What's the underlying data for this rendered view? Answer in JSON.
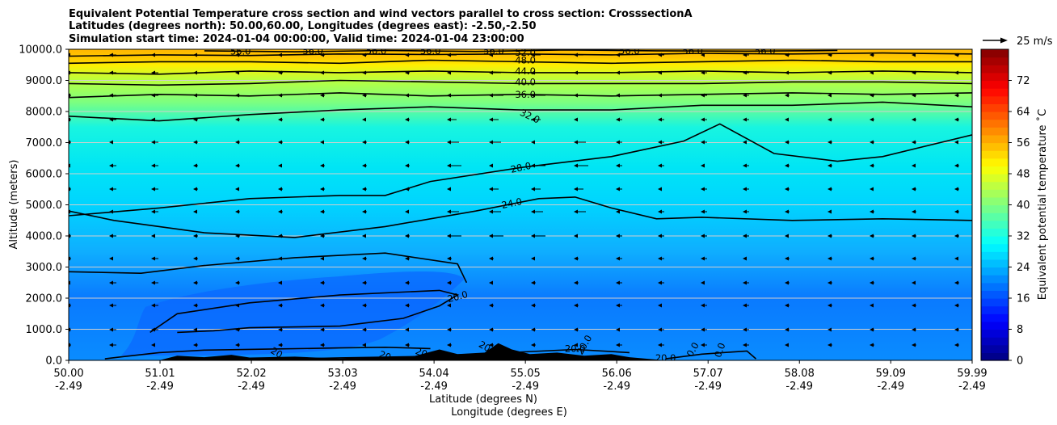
{
  "chart_data": {
    "type": "heatmap",
    "title": [
      "Equivalent Potential Temperature cross section and wind vectors parallel to cross section: CrosssectionA",
      "Latitudes (degrees north): 50.00,60.00, Longitudes (degrees east): -2.50,-2.50",
      "Simulation start time: 2024-01-04 00:00:00, Valid time: 2024-01-04 23:00:00"
    ],
    "ylabel": "Altitude (meters)",
    "xlabel": "Latitude (degrees N)",
    "xlabel2": "Longitude (degrees E)",
    "ylim": [
      0,
      10000
    ],
    "yticks": [
      "0.0",
      "1000.0",
      "2000.0",
      "3000.0",
      "4000.0",
      "5000.0",
      "6000.0",
      "7000.0",
      "8000.0",
      "9000.0",
      "10000.0"
    ],
    "xlim": [
      50.0,
      59.99
    ],
    "xticks": [
      {
        "lat": "50.00",
        "lon": "-2.49"
      },
      {
        "lat": "51.01",
        "lon": "-2.49"
      },
      {
        "lat": "52.02",
        "lon": "-2.49"
      },
      {
        "lat": "53.03",
        "lon": "-2.49"
      },
      {
        "lat": "54.04",
        "lon": "-2.49"
      },
      {
        "lat": "55.05",
        "lon": "-2.49"
      },
      {
        "lat": "56.06",
        "lon": "-2.49"
      },
      {
        "lat": "57.07",
        "lon": "-2.49"
      },
      {
        "lat": "58.08",
        "lon": "-2.49"
      },
      {
        "lat": "59.09",
        "lon": "-2.49"
      },
      {
        "lat": "59.99",
        "lon": "-2.49"
      }
    ],
    "grid": true,
    "colorbar": {
      "label": "Equivalent potential temperature ˚C",
      "range": [
        0,
        80
      ],
      "ticks": [
        "0",
        "8",
        "16",
        "24",
        "32",
        "40",
        "48",
        "56",
        "64",
        "72"
      ]
    },
    "quiver_key": "25 m/s",
    "contours": [
      {
        "label": "20.0",
        "points": [
          [
            50.4,
            50
          ],
          [
            50.6,
            120
          ],
          [
            51.0,
            250
          ],
          [
            51.5,
            330
          ],
          [
            52.2,
            360
          ],
          [
            53.0,
            400
          ],
          [
            53.5,
            420
          ],
          [
            54.0,
            380
          ]
        ]
      },
      {
        "label": "20.0",
        "points": [
          [
            50.9,
            900
          ],
          [
            51.2,
            1500
          ],
          [
            52.0,
            1850
          ],
          [
            53.0,
            2100
          ],
          [
            54.1,
            2250
          ],
          [
            54.3,
            2100
          ],
          [
            54.1,
            1750
          ],
          [
            53.7,
            1350
          ],
          [
            53.0,
            1100
          ],
          [
            52.0,
            1050
          ],
          [
            51.6,
            950
          ],
          [
            51.2,
            900
          ]
        ]
      },
      {
        "label": "20.0",
        "points": [
          [
            52.5,
            50
          ],
          [
            53.0,
            80
          ],
          [
            53.8,
            120
          ],
          [
            54.5,
            200
          ],
          [
            55.6,
            350
          ],
          [
            56.2,
            250
          ]
        ]
      },
      {
        "label": "20.0",
        "points": [
          [
            56.6,
            50
          ],
          [
            57.0,
            200
          ],
          [
            57.5,
            300
          ],
          [
            57.6,
            50
          ]
        ]
      },
      {
        "label": "24.0",
        "points": [
          [
            50.0,
            2850
          ],
          [
            50.8,
            2800
          ],
          [
            51.5,
            3050
          ],
          [
            52.5,
            3300
          ],
          [
            53.5,
            3450
          ],
          [
            54.3,
            3100
          ],
          [
            54.4,
            2500
          ]
        ]
      },
      {
        "label": "24.0",
        "points": [
          [
            50.0,
            4800
          ],
          [
            50.5,
            4500
          ],
          [
            51.5,
            4100
          ],
          [
            52.5,
            3950
          ],
          [
            53.5,
            4300
          ],
          [
            54.5,
            4800
          ],
          [
            55.2,
            5200
          ],
          [
            55.6,
            5250
          ],
          [
            56.0,
            4900
          ],
          [
            56.5,
            4550
          ],
          [
            57.0,
            4600
          ],
          [
            58.0,
            4500
          ],
          [
            59.0,
            4550
          ],
          [
            59.99,
            4500
          ]
        ]
      },
      {
        "label": "28.0",
        "points": [
          [
            50.0,
            4650
          ],
          [
            51.0,
            4900
          ],
          [
            52.0,
            5200
          ],
          [
            53.0,
            5300
          ],
          [
            53.5,
            5300
          ],
          [
            54.0,
            5750
          ],
          [
            55.0,
            6200
          ],
          [
            56.0,
            6550
          ],
          [
            56.8,
            7050
          ],
          [
            57.2,
            7600
          ],
          [
            57.8,
            6650
          ],
          [
            58.5,
            6400
          ],
          [
            59.0,
            6550
          ],
          [
            59.99,
            7250
          ]
        ]
      },
      {
        "label": "32.0",
        "points": [
          [
            50.0,
            7850
          ],
          [
            51.0,
            7700
          ],
          [
            52.0,
            7900
          ],
          [
            53.0,
            8050
          ],
          [
            54.0,
            8150
          ],
          [
            55.0,
            8050
          ],
          [
            56.0,
            8050
          ],
          [
            57.0,
            8200
          ],
          [
            58.0,
            8200
          ],
          [
            59.0,
            8300
          ],
          [
            59.99,
            8150
          ]
        ]
      },
      {
        "label": "36.0",
        "points": [
          [
            50.0,
            8450
          ],
          [
            51.0,
            8550
          ],
          [
            52.0,
            8500
          ],
          [
            53.0,
            8600
          ],
          [
            54.0,
            8500
          ],
          [
            55.0,
            8550
          ],
          [
            56.0,
            8500
          ],
          [
            57.0,
            8550
          ],
          [
            58.0,
            8600
          ],
          [
            59.0,
            8550
          ],
          [
            59.99,
            8600
          ]
        ]
      },
      {
        "label": "40.0",
        "points": [
          [
            50.0,
            8900
          ],
          [
            51.0,
            8850
          ],
          [
            52.0,
            8900
          ],
          [
            53.0,
            9000
          ],
          [
            54.0,
            8950
          ],
          [
            55.0,
            8900
          ],
          [
            56.0,
            8900
          ],
          [
            57.0,
            8900
          ],
          [
            58.0,
            8950
          ],
          [
            59.0,
            8950
          ],
          [
            59.99,
            8900
          ]
        ]
      },
      {
        "label": "44.0",
        "points": [
          [
            50.0,
            9250
          ],
          [
            51.0,
            9200
          ],
          [
            52.0,
            9300
          ],
          [
            53.0,
            9250
          ],
          [
            54.0,
            9300
          ],
          [
            55.0,
            9250
          ],
          [
            56.0,
            9250
          ],
          [
            57.0,
            9300
          ],
          [
            58.0,
            9250
          ],
          [
            59.0,
            9300
          ],
          [
            59.99,
            9250
          ]
        ]
      },
      {
        "label": "48.0",
        "points": [
          [
            50.0,
            9550
          ],
          [
            51.0,
            9600
          ],
          [
            52.0,
            9600
          ],
          [
            53.0,
            9550
          ],
          [
            54.0,
            9650
          ],
          [
            55.0,
            9600
          ],
          [
            56.0,
            9550
          ],
          [
            57.0,
            9600
          ],
          [
            58.0,
            9650
          ],
          [
            59.0,
            9600
          ],
          [
            59.99,
            9600
          ]
        ]
      },
      {
        "label": "52.0",
        "points": [
          [
            50.0,
            9780
          ],
          [
            51.0,
            9820
          ],
          [
            52.0,
            9800
          ],
          [
            53.0,
            9850
          ],
          [
            54.0,
            9830
          ],
          [
            55.0,
            9850
          ],
          [
            56.0,
            9820
          ],
          [
            57.0,
            9870
          ],
          [
            58.0,
            9850
          ],
          [
            59.0,
            9880
          ],
          [
            59.99,
            9850
          ]
        ]
      },
      {
        "label": "56.0",
        "points": [
          [
            51.5,
            9950
          ],
          [
            52.5,
            9920
          ],
          [
            53.5,
            9960
          ],
          [
            54.5,
            9930
          ],
          [
            55.5,
            9980
          ],
          [
            56.5,
            9950
          ],
          [
            57.5,
            9940
          ],
          [
            58.5,
            9960
          ]
        ]
      }
    ],
    "contour_labels": [
      {
        "text": "20.0",
        "x": 54.3,
        "y": 2050,
        "angle": -15
      },
      {
        "text": "20.0",
        "x": 55.6,
        "y": 380,
        "angle": 0
      },
      {
        "text": "20",
        "x": 52.3,
        "y": 250,
        "angle": 30
      },
      {
        "text": "20",
        "x": 53.5,
        "y": 150,
        "angle": 20
      },
      {
        "text": "20",
        "x": 53.9,
        "y": 250,
        "angle": 20
      },
      {
        "text": "20",
        "x": 54.6,
        "y": 450,
        "angle": 30
      },
      {
        "text": "20.0",
        "x": 56.6,
        "y": 80,
        "angle": 0
      },
      {
        "text": "20.0",
        "x": 55.7,
        "y": 500,
        "angle": -60
      },
      {
        "text": "0.0",
        "x": 56.9,
        "y": 350,
        "angle": -60
      },
      {
        "text": "0.0",
        "x": 57.2,
        "y": 330,
        "angle": -70
      },
      {
        "text": "24.0",
        "x": 54.9,
        "y": 5050,
        "angle": -12
      },
      {
        "text": "28.0",
        "x": 55.0,
        "y": 6200,
        "angle": -12
      },
      {
        "text": "32.0",
        "x": 55.1,
        "y": 7850,
        "angle": 25
      },
      {
        "text": "36.0",
        "x": 55.05,
        "y": 8550,
        "angle": 0
      },
      {
        "text": "40.0",
        "x": 55.05,
        "y": 8950,
        "angle": 0
      },
      {
        "text": "44.0",
        "x": 55.05,
        "y": 9300,
        "angle": 0
      },
      {
        "text": "48.0",
        "x": 55.05,
        "y": 9650,
        "angle": 0
      },
      {
        "text": "52.0",
        "x": 55.05,
        "y": 9900,
        "angle": 0
      },
      {
        "text": "56.0",
        "x": 51.9,
        "y": 9930,
        "angle": 0
      },
      {
        "text": "56.0",
        "x": 52.7,
        "y": 9950,
        "angle": 0
      },
      {
        "text": "56.0",
        "x": 53.4,
        "y": 9950,
        "angle": 0
      },
      {
        "text": "56.0",
        "x": 54.0,
        "y": 9950,
        "angle": 0
      },
      {
        "text": "56.0",
        "x": 54.7,
        "y": 9950,
        "angle": 0
      },
      {
        "text": "56.0",
        "x": 56.2,
        "y": 9950,
        "angle": 0
      },
      {
        "text": "56.0",
        "x": 56.9,
        "y": 9950,
        "angle": 0
      },
      {
        "text": "56.0",
        "x": 57.7,
        "y": 9950,
        "angle": 0
      }
    ],
    "terrain": [
      [
        51.0,
        0
      ],
      [
        51.2,
        150
      ],
      [
        51.5,
        100
      ],
      [
        51.8,
        180
      ],
      [
        52.0,
        90
      ],
      [
        52.5,
        120
      ],
      [
        53.0,
        60
      ],
      [
        53.4,
        90
      ],
      [
        53.8,
        120
      ],
      [
        54.1,
        350
      ],
      [
        54.3,
        200
      ],
      [
        54.6,
        250
      ],
      [
        54.75,
        550
      ],
      [
        54.9,
        350
      ],
      [
        55.1,
        200
      ],
      [
        55.4,
        250
      ],
      [
        55.7,
        150
      ],
      [
        56.0,
        200
      ],
      [
        56.2,
        100
      ],
      [
        56.6,
        0
      ]
    ]
  }
}
